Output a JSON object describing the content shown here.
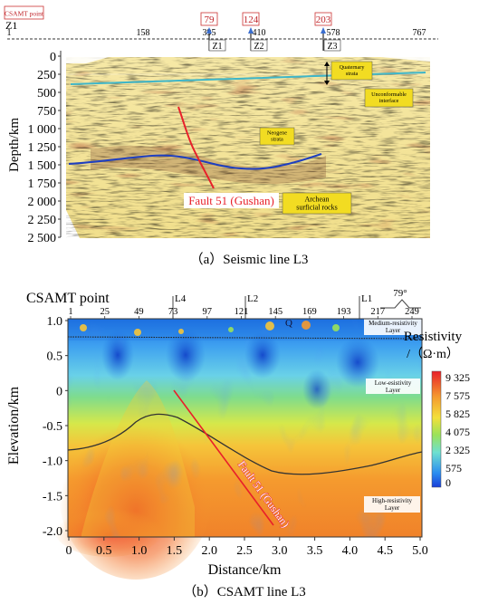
{
  "seismic": {
    "badge": "CSAMT point",
    "z1_left": "Z1",
    "top_ticks": [
      "1",
      "158",
      "395",
      "410",
      "578",
      "767"
    ],
    "marker_numbers": [
      "79",
      "124",
      "203"
    ],
    "zone_labels": [
      "Z1",
      "Z2",
      "Z3"
    ],
    "ylabel": "Depth/km",
    "yticks": [
      "0",
      "250",
      "500",
      "750",
      "1 000",
      "1 250",
      "1 500",
      "1 750",
      "2 000",
      "2 250",
      "2 500"
    ],
    "labels": {
      "quaternary": "Quaternary strata",
      "unconformable": "Unconformable interface",
      "neogene": "Neogene strata",
      "fault": "Fault 51 (Gushan)",
      "archean": "Archean surficial rocks"
    },
    "caption": "（a）Seismic line L3"
  },
  "csamt": {
    "title": "CSAMT point",
    "top_ticks": [
      "1",
      "25",
      "49",
      "73",
      "97",
      "121",
      "145",
      "169",
      "193",
      "217",
      "249"
    ],
    "line_labels": [
      "L4",
      "L2",
      "L1"
    ],
    "angle": "79°",
    "q_label": "Q",
    "ylabel": "Elevation/km",
    "yticks": [
      "1.0",
      "0.5",
      "0",
      "-0.5",
      "-1.0",
      "-1.5",
      "-2.0"
    ],
    "xlabel": "Distance/km",
    "xticks": [
      "0",
      "0.5",
      "1.0",
      "1.5",
      "2.0",
      "2.5",
      "3.0",
      "3.5",
      "4.0",
      "4.5",
      "5.0"
    ],
    "colorbar_title": "Resistivity",
    "colorbar_unit": "/（Ω·m）",
    "colorbar_ticks": [
      "9 325",
      "7 575",
      "5 825",
      "4 075",
      "2 325",
      "575",
      "0"
    ],
    "layers": {
      "medium": "Medium-resistivity Layer",
      "low": "Low-esistivity Layer",
      "high": "High-resistivity Layer"
    },
    "fault": "Fault 51 (Gushan)",
    "caption": "（b）CSAMT line L3"
  },
  "colors": {
    "fault": "#e8202a",
    "horizon_blue": "#1f3fbf",
    "horizon_cyan": "#3fb6c8",
    "label_box": "#f2dc22"
  }
}
